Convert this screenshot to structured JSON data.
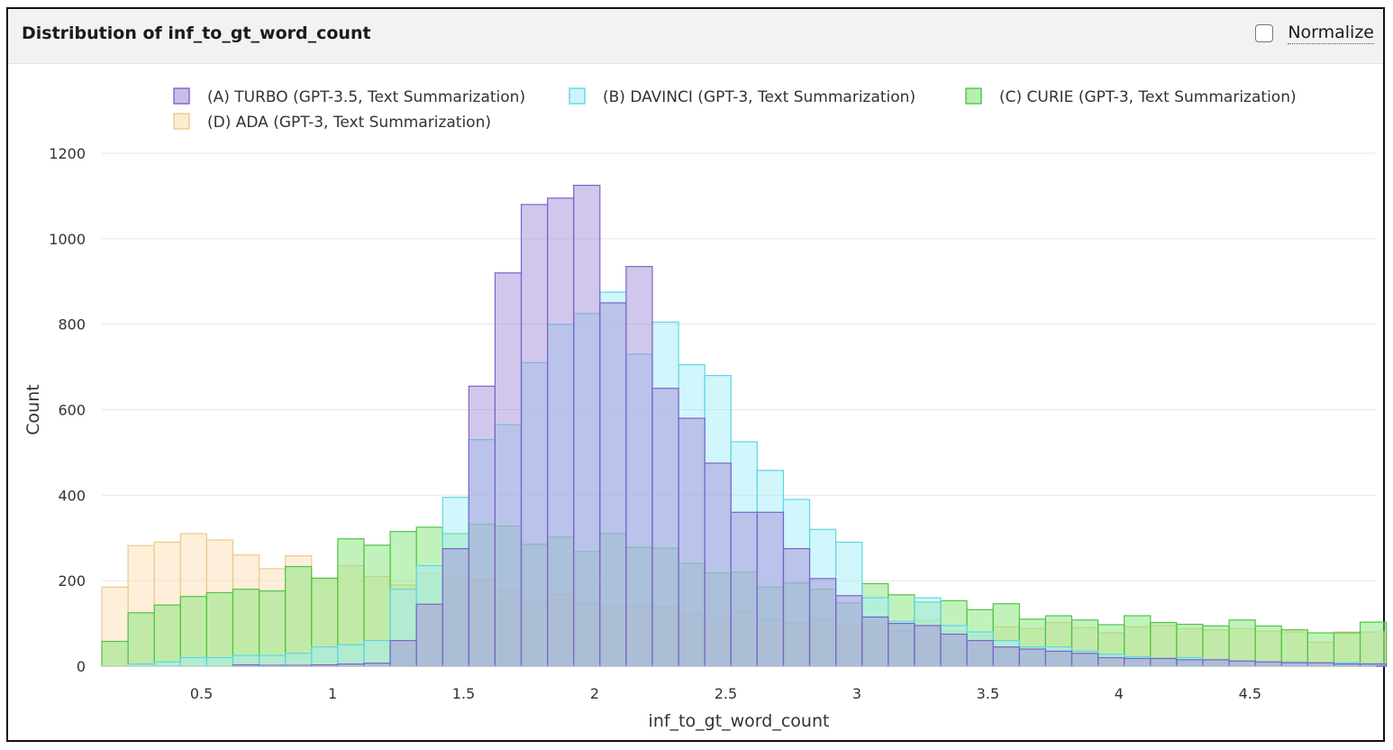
{
  "header": {
    "title": "Distribution of inf_to_gt_word_count",
    "normalize_label": "Normalize"
  },
  "chart_data": {
    "type": "histogram",
    "title": "Distribution of inf_to_gt_word_count",
    "xlabel": "inf_to_gt_word_count",
    "ylabel": "Count",
    "xlim": [
      0.12,
      4.98
    ],
    "ylim": [
      0,
      1200
    ],
    "xticks": [
      0.5,
      1,
      1.5,
      2,
      2.5,
      3,
      3.5,
      4,
      4.5
    ],
    "xtick_labels": [
      "0.5",
      "1",
      "1.5",
      "2",
      "2.5",
      "3",
      "3.5",
      "4",
      "4.5"
    ],
    "yticks": [
      0,
      200,
      400,
      600,
      800,
      1000,
      1200
    ],
    "ytick_labels": [
      "0",
      "200",
      "400",
      "600",
      "800",
      "1000",
      "1200"
    ],
    "grid": "horizontal",
    "legend_position": "top",
    "bin_start": 0.12,
    "bin_width": 0.1,
    "series": [
      {
        "name": "(A) TURBO (GPT-3.5, Text Summarization)",
        "fill": "#a48fd9",
        "stroke": "#7d63c9",
        "values": [
          0,
          0,
          0,
          0,
          0,
          3,
          2,
          2,
          3,
          5,
          7,
          60,
          145,
          275,
          655,
          920,
          1080,
          1095,
          1125,
          850,
          935,
          650,
          580,
          475,
          360,
          360,
          275,
          205,
          165,
          115,
          100,
          95,
          75,
          60,
          45,
          40,
          35,
          30,
          20,
          18,
          18,
          15,
          15,
          12,
          10,
          8,
          8,
          5,
          5
        ]
      },
      {
        "name": "(B) DAVINCI (GPT-3, Text Summarization)",
        "fill": "#a3eef7",
        "stroke": "#5cd6e5",
        "values": [
          0,
          5,
          10,
          20,
          20,
          25,
          25,
          30,
          45,
          50,
          60,
          180,
          235,
          395,
          530,
          565,
          710,
          800,
          825,
          875,
          730,
          805,
          705,
          680,
          525,
          458,
          390,
          320,
          290,
          160,
          105,
          160,
          95,
          80,
          60,
          45,
          45,
          35,
          28,
          22,
          18,
          20,
          15,
          12,
          10,
          10,
          8,
          8,
          6
        ]
      },
      {
        "name": "(C) CURIE (GPT-3, Text Summarization)",
        "fill": "#86e57a",
        "stroke": "#4ec544",
        "values": [
          58,
          125,
          143,
          163,
          172,
          180,
          176,
          233,
          206,
          298,
          283,
          315,
          325,
          310,
          332,
          328,
          285,
          302,
          268,
          310,
          278,
          276,
          240,
          218,
          220,
          185,
          195,
          180,
          148,
          193,
          167,
          150,
          153,
          132,
          146,
          110,
          118,
          108,
          97,
          118,
          102,
          98,
          94,
          108,
          94,
          85,
          78,
          78,
          103
        ]
      },
      {
        "name": "(D) ADA (GPT-3, Text Summarization)",
        "fill": "#fbe0b4",
        "stroke": "#eec98a",
        "values": [
          185,
          282,
          290,
          310,
          295,
          260,
          228,
          258,
          205,
          235,
          210,
          190,
          218,
          208,
          202,
          177,
          152,
          168,
          146,
          140,
          142,
          138,
          122,
          115,
          128,
          108,
          102,
          108,
          95,
          90,
          82,
          108,
          82,
          72,
          92,
          88,
          102,
          90,
          78,
          92,
          95,
          88,
          85,
          88,
          82,
          80,
          56,
          80,
          80
        ]
      }
    ]
  }
}
